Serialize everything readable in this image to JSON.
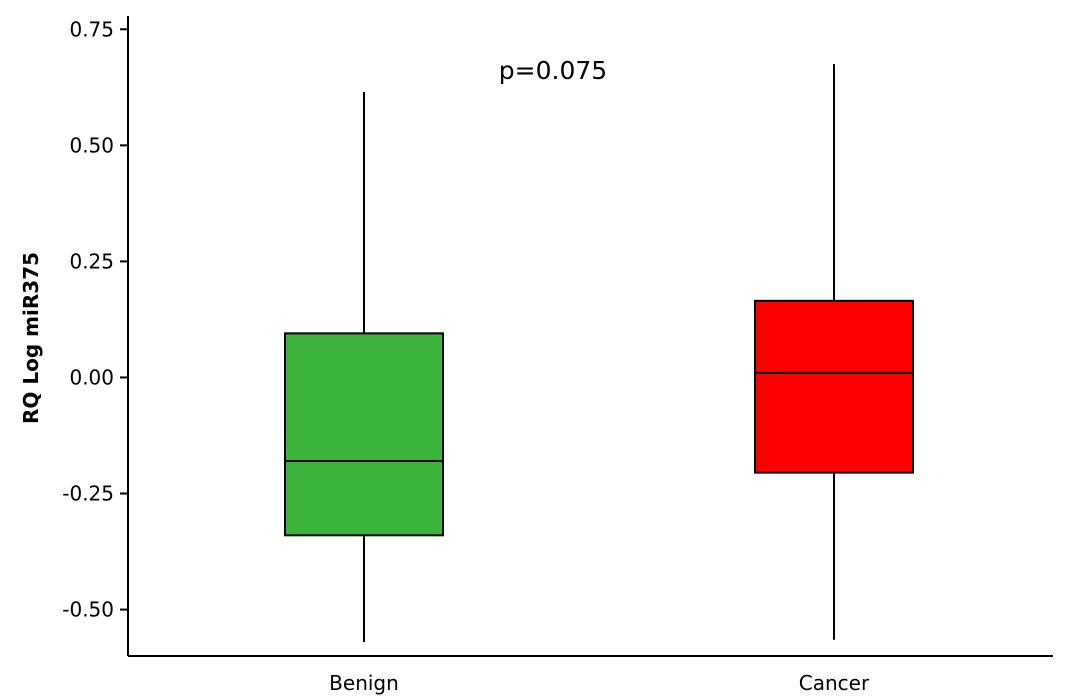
{
  "chart_data": {
    "type": "boxplot",
    "title": "",
    "xlabel": "",
    "ylabel": "RQ Log miR375",
    "ylim": [
      -0.6,
      0.77
    ],
    "yticks": [
      -0.5,
      -0.25,
      0.0,
      0.25,
      0.5,
      0.75
    ],
    "ytick_labels": [
      "-0.50",
      "-0.25",
      "0.00",
      "0.25",
      "0.50",
      "0.75"
    ],
    "grid": false,
    "annotations": [
      {
        "text": "p=0.075"
      }
    ],
    "categories": [
      "Benign",
      "Cancer"
    ],
    "boxes": [
      {
        "category": "Benign",
        "whisker_low": -0.57,
        "q1": -0.34,
        "median": -0.18,
        "q3": 0.095,
        "whisker_high": 0.615,
        "color": "#3cb33b"
      },
      {
        "category": "Cancer",
        "whisker_low": -0.565,
        "q1": -0.205,
        "median": 0.01,
        "q3": 0.165,
        "whisker_high": 0.675,
        "color": "#ff0000"
      }
    ]
  }
}
